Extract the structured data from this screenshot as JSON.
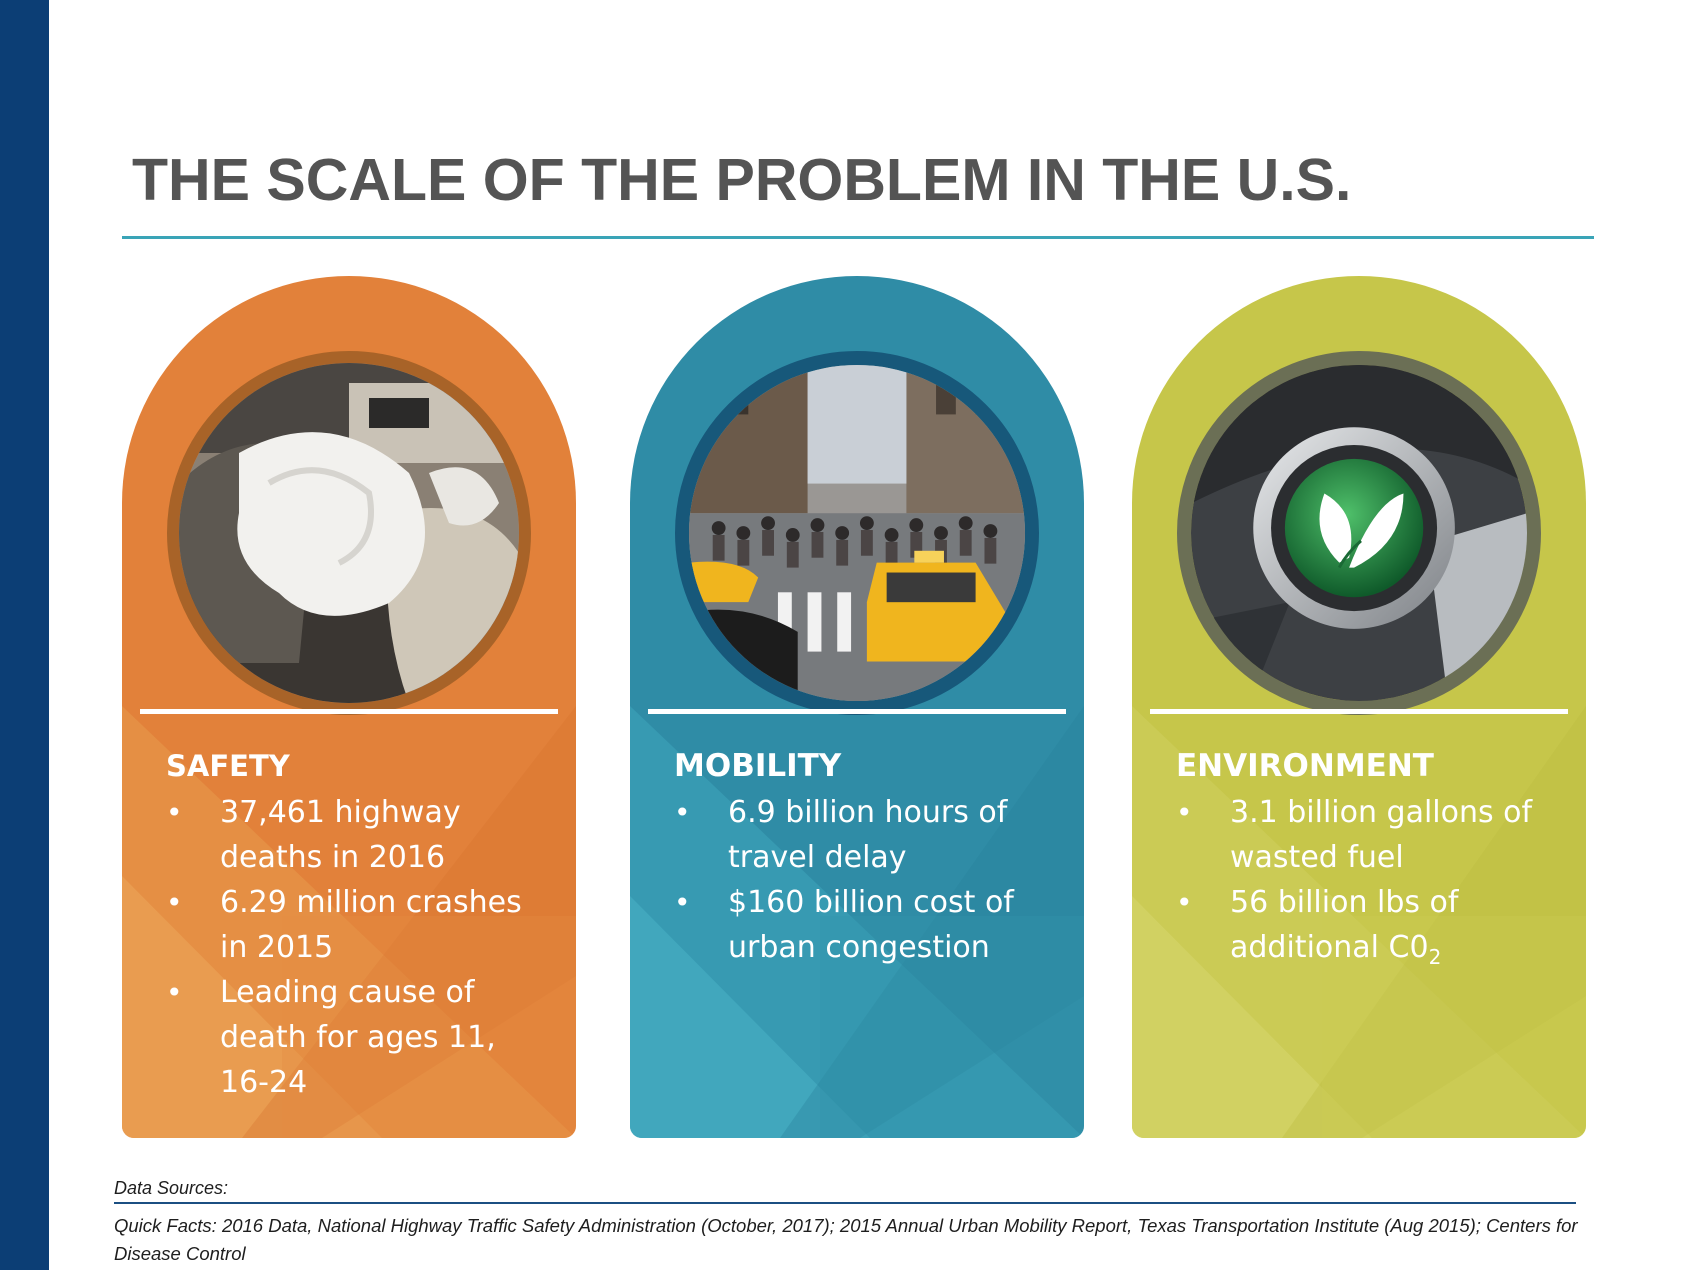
{
  "slide": {
    "title": "THE SCALE OF THE PROBLEM IN THE U.S."
  },
  "cards": [
    {
      "heading": "SAFETY",
      "photo_icon": "airbag-photo-icon",
      "bullets": [
        "37,461 highway deaths in 2016",
        "6.29 million crashes in 2015",
        "Leading cause of death for ages 11, 16-24"
      ]
    },
    {
      "heading": "MOBILITY",
      "photo_icon": "traffic-street-photo-icon",
      "bullets": [
        "6.9 billion hours of travel delay",
        "$160 billion cost of urban congestion"
      ]
    },
    {
      "heading": "ENVIRONMENT",
      "photo_icon": "eco-button-photo-icon",
      "bullets": [
        "3.1 billion gallons of wasted fuel",
        "56 billion lbs of additional C0",
        "2"
      ]
    }
  ],
  "sources": {
    "label": "Data Sources:",
    "text": "Quick Facts: 2016 Data, National Highway Traffic Safety Administration (October, 2017); 2015 Annual Urban Mobility Report, Texas Transportation Institute (Aug 2015); Centers for Disease Control"
  },
  "colors": {
    "side_bar": "#0c3e75",
    "title": "#545454",
    "title_rule": "#3aa4b7",
    "safety": "#e2813a",
    "mobility": "#2f8ca6",
    "environment": "#c6c64a"
  }
}
